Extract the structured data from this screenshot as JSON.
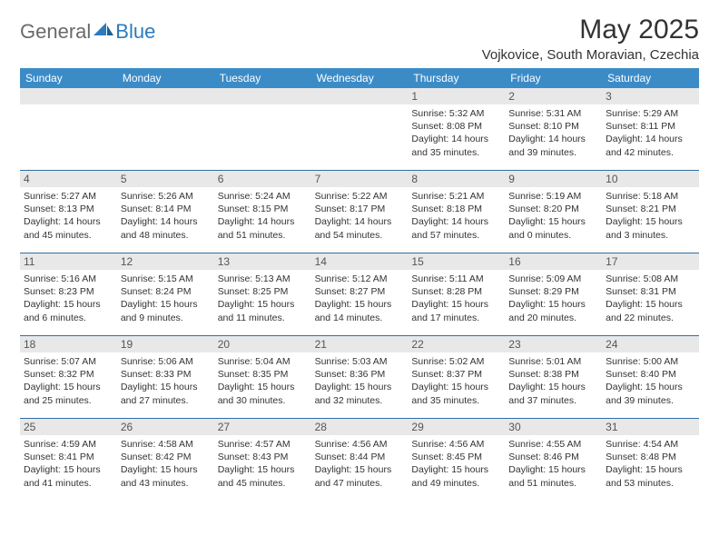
{
  "brand": {
    "general": "General",
    "blue": "Blue"
  },
  "title": {
    "month": "May 2025",
    "location": "Vojkovice, South Moravian, Czechia"
  },
  "colors": {
    "header_bg": "#3b8bc7",
    "week_divider": "#2f6fa3",
    "daynum_bg": "#e8e8e8",
    "text": "#333333",
    "logo_gray": "#6a6a6a",
    "logo_blue": "#2b7bbf"
  },
  "weekdays": [
    "Sunday",
    "Monday",
    "Tuesday",
    "Wednesday",
    "Thursday",
    "Friday",
    "Saturday"
  ],
  "weeks": [
    [
      null,
      null,
      null,
      null,
      {
        "n": "1",
        "sunrise": "5:32 AM",
        "sunset": "8:08 PM",
        "daylight": "14 hours and 35 minutes."
      },
      {
        "n": "2",
        "sunrise": "5:31 AM",
        "sunset": "8:10 PM",
        "daylight": "14 hours and 39 minutes."
      },
      {
        "n": "3",
        "sunrise": "5:29 AM",
        "sunset": "8:11 PM",
        "daylight": "14 hours and 42 minutes."
      }
    ],
    [
      {
        "n": "4",
        "sunrise": "5:27 AM",
        "sunset": "8:13 PM",
        "daylight": "14 hours and 45 minutes."
      },
      {
        "n": "5",
        "sunrise": "5:26 AM",
        "sunset": "8:14 PM",
        "daylight": "14 hours and 48 minutes."
      },
      {
        "n": "6",
        "sunrise": "5:24 AM",
        "sunset": "8:15 PM",
        "daylight": "14 hours and 51 minutes."
      },
      {
        "n": "7",
        "sunrise": "5:22 AM",
        "sunset": "8:17 PM",
        "daylight": "14 hours and 54 minutes."
      },
      {
        "n": "8",
        "sunrise": "5:21 AM",
        "sunset": "8:18 PM",
        "daylight": "14 hours and 57 minutes."
      },
      {
        "n": "9",
        "sunrise": "5:19 AM",
        "sunset": "8:20 PM",
        "daylight": "15 hours and 0 minutes."
      },
      {
        "n": "10",
        "sunrise": "5:18 AM",
        "sunset": "8:21 PM",
        "daylight": "15 hours and 3 minutes."
      }
    ],
    [
      {
        "n": "11",
        "sunrise": "5:16 AM",
        "sunset": "8:23 PM",
        "daylight": "15 hours and 6 minutes."
      },
      {
        "n": "12",
        "sunrise": "5:15 AM",
        "sunset": "8:24 PM",
        "daylight": "15 hours and 9 minutes."
      },
      {
        "n": "13",
        "sunrise": "5:13 AM",
        "sunset": "8:25 PM",
        "daylight": "15 hours and 11 minutes."
      },
      {
        "n": "14",
        "sunrise": "5:12 AM",
        "sunset": "8:27 PM",
        "daylight": "15 hours and 14 minutes."
      },
      {
        "n": "15",
        "sunrise": "5:11 AM",
        "sunset": "8:28 PM",
        "daylight": "15 hours and 17 minutes."
      },
      {
        "n": "16",
        "sunrise": "5:09 AM",
        "sunset": "8:29 PM",
        "daylight": "15 hours and 20 minutes."
      },
      {
        "n": "17",
        "sunrise": "5:08 AM",
        "sunset": "8:31 PM",
        "daylight": "15 hours and 22 minutes."
      }
    ],
    [
      {
        "n": "18",
        "sunrise": "5:07 AM",
        "sunset": "8:32 PM",
        "daylight": "15 hours and 25 minutes."
      },
      {
        "n": "19",
        "sunrise": "5:06 AM",
        "sunset": "8:33 PM",
        "daylight": "15 hours and 27 minutes."
      },
      {
        "n": "20",
        "sunrise": "5:04 AM",
        "sunset": "8:35 PM",
        "daylight": "15 hours and 30 minutes."
      },
      {
        "n": "21",
        "sunrise": "5:03 AM",
        "sunset": "8:36 PM",
        "daylight": "15 hours and 32 minutes."
      },
      {
        "n": "22",
        "sunrise": "5:02 AM",
        "sunset": "8:37 PM",
        "daylight": "15 hours and 35 minutes."
      },
      {
        "n": "23",
        "sunrise": "5:01 AM",
        "sunset": "8:38 PM",
        "daylight": "15 hours and 37 minutes."
      },
      {
        "n": "24",
        "sunrise": "5:00 AM",
        "sunset": "8:40 PM",
        "daylight": "15 hours and 39 minutes."
      }
    ],
    [
      {
        "n": "25",
        "sunrise": "4:59 AM",
        "sunset": "8:41 PM",
        "daylight": "15 hours and 41 minutes."
      },
      {
        "n": "26",
        "sunrise": "4:58 AM",
        "sunset": "8:42 PM",
        "daylight": "15 hours and 43 minutes."
      },
      {
        "n": "27",
        "sunrise": "4:57 AM",
        "sunset": "8:43 PM",
        "daylight": "15 hours and 45 minutes."
      },
      {
        "n": "28",
        "sunrise": "4:56 AM",
        "sunset": "8:44 PM",
        "daylight": "15 hours and 47 minutes."
      },
      {
        "n": "29",
        "sunrise": "4:56 AM",
        "sunset": "8:45 PM",
        "daylight": "15 hours and 49 minutes."
      },
      {
        "n": "30",
        "sunrise": "4:55 AM",
        "sunset": "8:46 PM",
        "daylight": "15 hours and 51 minutes."
      },
      {
        "n": "31",
        "sunrise": "4:54 AM",
        "sunset": "8:48 PM",
        "daylight": "15 hours and 53 minutes."
      }
    ]
  ],
  "labels": {
    "sunrise": "Sunrise: ",
    "sunset": "Sunset: ",
    "daylight": "Daylight: "
  }
}
